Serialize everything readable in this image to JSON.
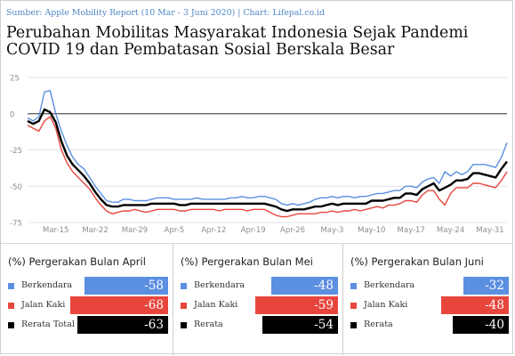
{
  "header": {
    "source": "Sumber: Apple Mobility Report (10 Mar - 3 Juni 2020) | Chart: Lifepal.co.id",
    "title": "Perubahan Mobilitas Masyarakat Indonesia Sejak Pandemi COVID 19 dan Pembatasan Sosial Berskala Besar"
  },
  "colors": {
    "berkendara": "#5b8fe0",
    "jalan_kaki": "#e8463c",
    "rerata": "#000000",
    "zero_line": "#555555",
    "grid": "#e6e6e6",
    "axis_text": "#8f8f8f"
  },
  "chart_data": {
    "type": "line",
    "title": "Perubahan Mobilitas Masyarakat Indonesia Sejak Pandemi COVID 19 dan Pembatasan Sosial Berskala Besar",
    "xlabel": "",
    "ylabel": "",
    "ylim": [
      -75,
      25
    ],
    "yticks": [
      25,
      0,
      -25,
      -50,
      -75
    ],
    "grid": true,
    "x_start": "Mar-10",
    "x_end": "Jun-3",
    "x_tick_labels": [
      {
        "label": "Mar-15",
        "day": 5
      },
      {
        "label": "Mar-22",
        "day": 12
      },
      {
        "label": "Mar-29",
        "day": 19
      },
      {
        "label": "Apr-5",
        "day": 26
      },
      {
        "label": "Apr-12",
        "day": 33
      },
      {
        "label": "Apr-19",
        "day": 40
      },
      {
        "label": "Apr-26",
        "day": 47
      },
      {
        "label": "May-3",
        "day": 54
      },
      {
        "label": "May-10",
        "day": 61
      },
      {
        "label": "May-17",
        "day": 68
      },
      {
        "label": "May-24",
        "day": 75
      },
      {
        "label": "May-31",
        "day": 82
      }
    ],
    "series": [
      {
        "name": "Berkendara",
        "color": "#5b8fe0",
        "values": [
          -3,
          -5,
          -2,
          15,
          16,
          0,
          -12,
          -22,
          -30,
          -35,
          -38,
          -44,
          -50,
          -55,
          -60,
          -61,
          -61,
          -59,
          -59,
          -60,
          -60,
          -60,
          -59,
          -58,
          -58,
          -58,
          -59,
          -59,
          -59,
          -59,
          -58,
          -59,
          -59,
          -59,
          -59,
          -59,
          -58,
          -58,
          -57,
          -58,
          -58,
          -57,
          -57,
          -58,
          -59,
          -62,
          -63,
          -62,
          -63,
          -62,
          -61,
          -59,
          -58,
          -58,
          -57,
          -58,
          -57,
          -57,
          -58,
          -57,
          -57,
          -56,
          -55,
          -55,
          -54,
          -53,
          -53,
          -50,
          -50,
          -51,
          -47,
          -45,
          -44,
          -48,
          -40,
          -43,
          -40,
          -42,
          -40,
          -35,
          -35,
          -35,
          -36,
          -37,
          -30,
          -20
        ]
      },
      {
        "name": "Jalan Kaki",
        "color": "#e8463c",
        "values": [
          -8,
          -10,
          -12,
          -5,
          -2,
          -10,
          -25,
          -34,
          -40,
          -44,
          -48,
          -52,
          -58,
          -63,
          -67,
          -69,
          -68,
          -67,
          -67,
          -66,
          -67,
          -68,
          -67,
          -66,
          -66,
          -66,
          -66,
          -67,
          -67,
          -66,
          -66,
          -66,
          -66,
          -66,
          -67,
          -66,
          -66,
          -66,
          -66,
          -67,
          -66,
          -66,
          -66,
          -68,
          -70,
          -71,
          -71,
          -70,
          -69,
          -69,
          -69,
          -69,
          -68,
          -68,
          -67,
          -68,
          -67,
          -67,
          -66,
          -67,
          -66,
          -65,
          -64,
          -65,
          -63,
          -63,
          -62,
          -60,
          -60,
          -61,
          -56,
          -53,
          -53,
          -59,
          -63,
          -55,
          -51,
          -51,
          -51,
          -48,
          -48,
          -49,
          -50,
          -51,
          -46,
          -40
        ]
      },
      {
        "name": "Rerata Total",
        "color": "#000000",
        "values": [
          -5,
          -7,
          -5,
          3,
          1,
          -6,
          -19,
          -29,
          -35,
          -39,
          -43,
          -48,
          -54,
          -59,
          -63,
          -64,
          -64,
          -63,
          -63,
          -63,
          -63,
          -63,
          -62,
          -62,
          -62,
          -62,
          -62,
          -63,
          -63,
          -62,
          -62,
          -62,
          -62,
          -62,
          -62,
          -62,
          -62,
          -62,
          -62,
          -62,
          -62,
          -62,
          -62,
          -63,
          -64,
          -66,
          -67,
          -66,
          -66,
          -66,
          -65,
          -64,
          -64,
          -63,
          -62,
          -63,
          -62,
          -62,
          -62,
          -62,
          -62,
          -60,
          -60,
          -60,
          -59,
          -58,
          -58,
          -55,
          -55,
          -56,
          -52,
          -50,
          -48,
          -53,
          -51,
          -49,
          -46,
          -46,
          -45,
          -41,
          -41,
          -42,
          -43,
          -44,
          -38,
          -33
        ]
      }
    ]
  },
  "panels": [
    {
      "title": "(%) Pergerakan Bulan April",
      "rows": [
        {
          "label": "Berkendara",
          "value": "-58",
          "color": "#5b8fe0"
        },
        {
          "label": "Jalan Kaki",
          "value": "-68",
          "color": "#e8463c"
        },
        {
          "label": "Rerata Total",
          "value": "-63",
          "color": "#000000"
        }
      ]
    },
    {
      "title": "(%) Pergerakan Bulan Mei",
      "rows": [
        {
          "label": "Berkendara",
          "value": "-48",
          "color": "#5b8fe0"
        },
        {
          "label": "Jalan Kaki",
          "value": "-59",
          "color": "#e8463c"
        },
        {
          "label": "Rerata",
          "value": "-54",
          "color": "#000000"
        }
      ]
    },
    {
      "title": "(%) Pergerakan Bulan Juni",
      "rows": [
        {
          "label": "Berkendara",
          "value": "-32",
          "color": "#5b8fe0"
        },
        {
          "label": "Jalan Kaki",
          "value": "-48",
          "color": "#e8463c"
        },
        {
          "label": "Rerata",
          "value": "-40",
          "color": "#000000"
        }
      ]
    }
  ]
}
